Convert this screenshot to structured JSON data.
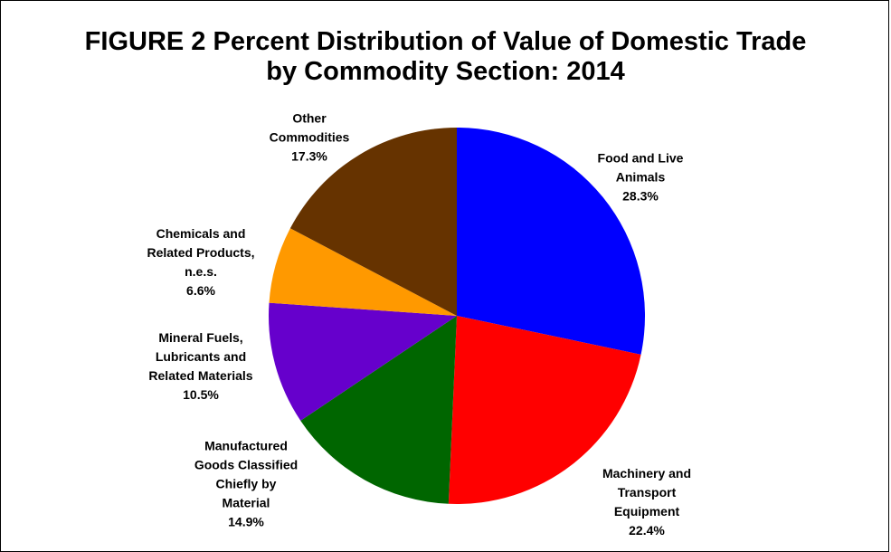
{
  "chart_data": {
    "type": "pie",
    "title": "FIGURE 2  Percent Distribution of Value of Domestic Trade\nby Commodity Section:  2014",
    "categories": [
      "Food and Live\nAnimals",
      "Machinery and\nTransport\nEquipment",
      "Manufactured\nGoods Classified\nChiefly by\nMaterial",
      "Mineral Fuels,\nLubricants and\nRelated Materials",
      "Chemicals and\nRelated Products,\nn.e.s.",
      "Other\nCommodities"
    ],
    "values": [
      28.3,
      22.4,
      14.9,
      10.5,
      6.6,
      17.3
    ],
    "value_labels": [
      "28.3%",
      "22.4%",
      "14.9%",
      "10.5%",
      "6.6%",
      "17.3%"
    ],
    "colors": [
      "#0000ff",
      "#ff0000",
      "#006600",
      "#6600cc",
      "#ff9900",
      "#663300"
    ]
  }
}
